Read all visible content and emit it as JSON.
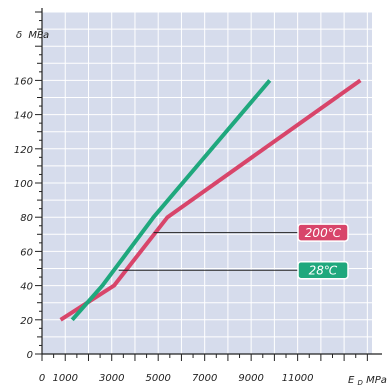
{
  "chart_data": {
    "type": "line",
    "xlabel": {
      "main": "E",
      "sub": "D",
      "unit": "MPa"
    },
    "ylabel": {
      "main": "δ",
      "unit": "MPa"
    },
    "x_ticks": [
      0,
      1000,
      3000,
      5000,
      7000,
      9000,
      11000
    ],
    "y_ticks": [
      0,
      20,
      40,
      60,
      80,
      100,
      120,
      140,
      160
    ],
    "xlim": [
      0,
      14200
    ],
    "ylim": [
      0,
      200
    ],
    "grid": true,
    "series": [
      {
        "name": "200℃",
        "color": "#d8456a",
        "x": [
          800,
          3100,
          5400,
          13700
        ],
        "y": [
          20,
          40,
          80,
          160
        ]
      },
      {
        "name": "28℃",
        "color": "#1fa87d",
        "x": [
          1300,
          2600,
          4800,
          9800
        ],
        "y": [
          20,
          40,
          80,
          160
        ]
      }
    ],
    "legend_placement": "right",
    "legend_labels": [
      {
        "label": "200℃",
        "color": "#d8456a",
        "anchor_x": 4800,
        "anchor_y": 71
      },
      {
        "label": "28℃",
        "color": "#1fa87d",
        "anchor_x": 3300,
        "anchor_y": 49
      }
    ]
  }
}
